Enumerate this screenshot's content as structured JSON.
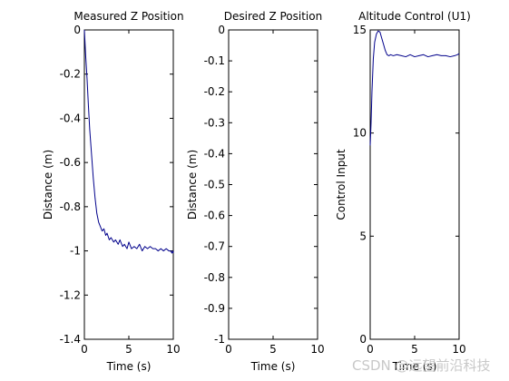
{
  "chart_data": [
    {
      "type": "line",
      "title": "Measured Z Position",
      "xlabel": "Time (s)",
      "ylabel": "Distance (m)",
      "xlim": [
        0,
        10
      ],
      "ylim": [
        -1.4,
        0
      ],
      "xticks": [
        0,
        5,
        10
      ],
      "xtick_labels": [
        "0",
        "5",
        "10"
      ],
      "yticks": [
        0,
        -0.2,
        -0.4,
        -0.6,
        -0.8,
        -1,
        -1.2,
        -1.4
      ],
      "ytick_labels": [
        "0",
        "-0.2",
        "-0.4",
        "-0.6",
        "-0.8",
        "-1",
        "-1.2",
        "-1.4"
      ],
      "grid": false,
      "series": [
        {
          "color": "#00008b",
          "x": [
            0,
            0.05,
            0.15,
            0.3,
            0.45,
            0.6,
            0.8,
            1.0,
            1.2,
            1.4,
            1.6,
            1.8,
            2.0,
            2.2,
            2.4,
            2.55,
            2.8,
            3.0,
            3.3,
            3.5,
            3.8,
            4.0,
            4.3,
            4.5,
            4.8,
            5.0,
            5.3,
            5.6,
            5.9,
            6.2,
            6.5,
            6.8,
            7.1,
            7.4,
            7.7,
            8.0,
            8.3,
            8.6,
            8.9,
            9.2,
            9.5,
            9.7,
            9.85,
            9.95,
            10
          ],
          "y": [
            0,
            -0.04,
            -0.12,
            -0.22,
            -0.34,
            -0.45,
            -0.56,
            -0.67,
            -0.76,
            -0.83,
            -0.87,
            -0.89,
            -0.91,
            -0.9,
            -0.93,
            -0.92,
            -0.95,
            -0.94,
            -0.96,
            -0.95,
            -0.97,
            -0.95,
            -0.98,
            -0.97,
            -0.99,
            -0.96,
            -0.99,
            -0.98,
            -0.99,
            -0.97,
            -1.0,
            -0.98,
            -0.99,
            -0.98,
            -0.99,
            -0.99,
            -1.0,
            -0.99,
            -1.0,
            -0.99,
            -1.0,
            -1.0,
            -1.01,
            -1.0,
            -1.01
          ]
        }
      ]
    },
    {
      "type": "line",
      "title": "Desired Z Position",
      "xlabel": "Time (s)",
      "ylabel": "Distance (m)",
      "xlim": [
        0,
        10
      ],
      "ylim": [
        -1,
        0
      ],
      "xticks": [
        0,
        5,
        10
      ],
      "xtick_labels": [
        "0",
        "5",
        "10"
      ],
      "yticks": [
        0,
        -0.1,
        -0.2,
        -0.3,
        -0.4,
        -0.5,
        -0.6,
        -0.7,
        -0.8,
        -0.9,
        -1
      ],
      "ytick_labels": [
        "0",
        "-0.1",
        "-0.2",
        "-0.3",
        "-0.4",
        "-0.5",
        "-0.6",
        "-0.7",
        "-0.8",
        "-0.9",
        "-1"
      ],
      "grid": false,
      "series": []
    },
    {
      "type": "line",
      "title": "Altitude Control (U1)",
      "xlabel": "Time (s)",
      "ylabel": "Control Input",
      "xlim": [
        0,
        10
      ],
      "ylim": [
        0,
        15
      ],
      "xticks": [
        0,
        5,
        10
      ],
      "xtick_labels": [
        "0",
        "5",
        "10"
      ],
      "yticks": [
        0,
        5,
        10,
        15
      ],
      "ytick_labels": [
        "0",
        "5",
        "10",
        "15"
      ],
      "grid": false,
      "series": [
        {
          "color": "#00008b",
          "x": [
            0,
            0.1,
            0.2,
            0.35,
            0.5,
            0.7,
            0.9,
            1.1,
            1.3,
            1.5,
            1.7,
            1.9,
            2.1,
            2.3,
            2.6,
            3.0,
            3.5,
            4.0,
            4.5,
            5.0,
            5.5,
            6.0,
            6.5,
            7.0,
            7.5,
            8.0,
            8.5,
            9.0,
            9.5,
            9.8,
            10
          ],
          "y": [
            9.4,
            10.5,
            12.0,
            13.6,
            14.4,
            14.8,
            14.95,
            14.9,
            14.6,
            14.3,
            14.0,
            13.8,
            13.75,
            13.8,
            13.75,
            13.8,
            13.75,
            13.7,
            13.8,
            13.7,
            13.75,
            13.8,
            13.7,
            13.75,
            13.8,
            13.75,
            13.75,
            13.7,
            13.75,
            13.8,
            13.85
          ]
        }
      ]
    }
  ],
  "watermark": "CSDN @远望前沿科技"
}
